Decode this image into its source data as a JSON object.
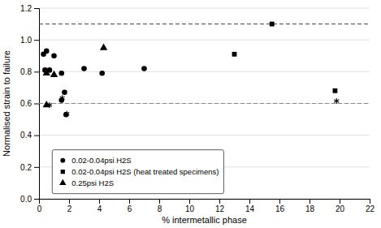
{
  "chart_data": {
    "type": "scatter",
    "xlabel": "% intermetallic phase",
    "ylabel": "Normalised strain to failure",
    "xlim": [
      0,
      22
    ],
    "ylim": [
      0,
      1.2
    ],
    "xticks": [
      0,
      2,
      4,
      6,
      8,
      10,
      12,
      14,
      16,
      18,
      20,
      22
    ],
    "yticks": [
      {
        "value": 0,
        "label": "0.0"
      },
      0.2,
      0.4,
      0.6,
      0.8,
      {
        "value": 1.0,
        "label": "1.0"
      },
      1.2
    ],
    "grid": true,
    "legend": "lower left",
    "series": [
      {
        "name": "0.02-0.04psi H2S",
        "marker": "circle",
        "color": "#000000",
        "x": [
          0.3,
          0.4,
          0.5,
          0.7,
          1.0,
          1.5,
          1.7,
          3.0,
          4.2,
          7.0,
          1.5,
          1.8
        ],
        "values": [
          0.91,
          0.81,
          0.93,
          0.81,
          0.9,
          0.79,
          0.67,
          0.82,
          0.79,
          0.82,
          0.62,
          0.53
        ]
      },
      {
        "name": "0.02-0.04psi H2S (heat treated specimens)",
        "marker": "square",
        "color": "#000000",
        "x": [
          15.5,
          13.0,
          19.7
        ],
        "values": [
          1.1,
          0.91,
          0.68
        ]
      },
      {
        "name": "0.25psi H2S",
        "marker": "triangle",
        "color": "#000000",
        "x": [
          0.5,
          1.0,
          4.3,
          0.5
        ],
        "values": [
          0.79,
          0.78,
          0.95,
          0.59
        ]
      },
      {
        "marker": "asterisk",
        "color": "#000000",
        "x": [
          1.55,
          1.85,
          19.8,
          0.7
        ],
        "values": [
          0.635,
          0.535,
          0.615,
          0.59
        ]
      }
    ],
    "hlines": [
      {
        "value": 1.1,
        "color": "#444444",
        "line_style": "dashed"
      },
      {
        "value": 0.6,
        "color": "#888888",
        "line_style": "dashed"
      }
    ]
  }
}
